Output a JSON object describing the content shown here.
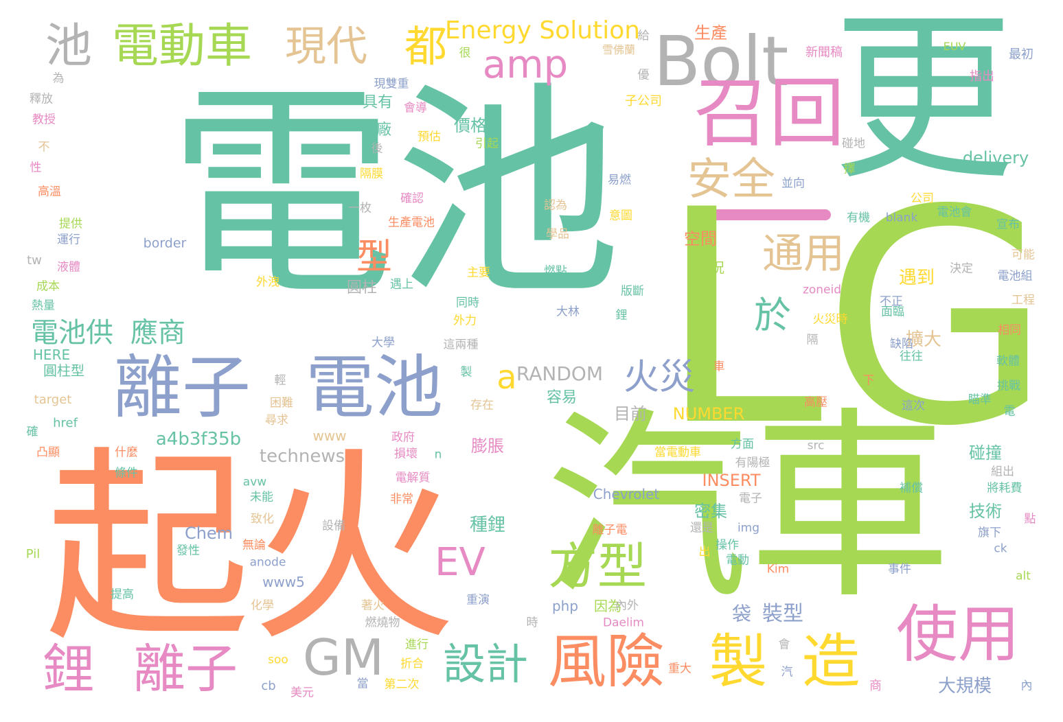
{
  "words": [
    {
      "text": "電池",
      "color": "#66c2a5"
    },
    {
      "text": "更",
      "color": "#66c2a5"
    },
    {
      "text": "LG",
      "color": "#a6d854"
    },
    {
      "text": "起火",
      "color": "#fc8d62"
    },
    {
      "text": "汽車",
      "color": "#a6d854"
    },
    {
      "text": "Bolt",
      "color": "#b3b3b3"
    },
    {
      "text": "召回",
      "color": "#e78ac3"
    },
    {
      "text": "離子",
      "color": "#8da0cb"
    },
    {
      "text": "電池",
      "color": "#8da0cb"
    },
    {
      "text": "電動車",
      "color": "#a6d854"
    },
    {
      "text": "池",
      "color": "#b3b3b3"
    },
    {
      "text": "現代",
      "color": "#e5c494"
    },
    {
      "text": "都",
      "color": "#ffd92f"
    },
    {
      "text": "amp",
      "color": "#e78ac3"
    },
    {
      "text": "Energy Solution",
      "color": "#ffd92f"
    },
    {
      "text": "安全",
      "color": "#e5c494"
    },
    {
      "text": "通用",
      "color": "#e5c494"
    },
    {
      "text": "於",
      "color": "#66c2a5"
    },
    {
      "text": "型",
      "color": "#fc8d62"
    },
    {
      "text": "電池供",
      "color": "#66c2a5"
    },
    {
      "text": "應商",
      "color": "#66c2a5"
    },
    {
      "text": "a",
      "color": "#ffd92f"
    },
    {
      "text": "火災",
      "color": "#8da0cb"
    },
    {
      "text": "方型",
      "color": "#a6d854"
    },
    {
      "text": "EV",
      "color": "#e78ac3"
    },
    {
      "text": "GM",
      "color": "#b3b3b3"
    },
    {
      "text": "鋰",
      "color": "#e78ac3"
    },
    {
      "text": "離子",
      "color": "#e78ac3"
    },
    {
      "text": "設計",
      "color": "#66c2a5"
    },
    {
      "text": "風險",
      "color": "#fc8d62"
    },
    {
      "text": "製",
      "color": "#ffd92f"
    },
    {
      "text": "造",
      "color": "#ffd92f"
    },
    {
      "text": "使用",
      "color": "#e78ac3"
    },
    {
      "text": "RANDOM",
      "color": "#b3b3b3"
    },
    {
      "text": "a4b3f35b",
      "color": "#66c2a5"
    },
    {
      "text": "technews",
      "color": "#b3b3b3"
    },
    {
      "text": "NUMBER",
      "color": "#ffd92f"
    },
    {
      "text": "delivery",
      "color": "#66c2a5"
    },
    {
      "text": "Chevrolet",
      "color": "#8da0cb"
    },
    {
      "text": "Chem",
      "color": "#8da0cb"
    },
    {
      "text": "INSERT",
      "color": "#fc8d62"
    },
    {
      "text": "php",
      "color": "#8da0cb"
    },
    {
      "text": "因為",
      "color": "#a6d854"
    },
    {
      "text": "袋",
      "color": "#8da0cb"
    },
    {
      "text": "裝型",
      "color": "#8da0cb"
    },
    {
      "text": "www5",
      "color": "#8da0cb"
    },
    {
      "text": "border",
      "color": "#8da0cb"
    },
    {
      "text": "HERE",
      "color": "#66c2a5"
    },
    {
      "text": "圓柱型",
      "color": "#66c2a5"
    },
    {
      "text": "target",
      "color": "#e5c494"
    },
    {
      "text": "href",
      "color": "#66c2a5"
    },
    {
      "text": "www",
      "color": "#e5c494"
    },
    {
      "text": "目前",
      "color": "#b3b3b3"
    },
    {
      "text": "容易",
      "color": "#66c2a5"
    },
    {
      "text": "膨脹",
      "color": "#e78ac3"
    },
    {
      "text": "空間",
      "color": "#fc8d62"
    },
    {
      "text": "狀況",
      "color": "#a6d854"
    },
    {
      "text": "遇到",
      "color": "#ffd92f"
    },
    {
      "text": "擴大",
      "color": "#e5c494"
    },
    {
      "text": "技術",
      "color": "#66c2a5"
    },
    {
      "text": "碰撞",
      "color": "#66c2a5"
    },
    {
      "text": "密集",
      "color": "#66c2a5"
    },
    {
      "text": "種鋰",
      "color": "#66c2a5"
    },
    {
      "text": "大規模",
      "color": "#8da0cb"
    },
    {
      "text": "價格",
      "color": "#66c2a5"
    },
    {
      "text": "具有",
      "color": "#66c2a5"
    },
    {
      "text": "韓廠",
      "color": "#66c2a5"
    },
    {
      "text": "圓柱",
      "color": "#b3b3b3"
    },
    {
      "text": "生產",
      "color": "#fc8d62"
    },
    {
      "text": "新聞稿",
      "color": "#e78ac3"
    },
    {
      "text": "EUV",
      "color": "#a6d854"
    },
    {
      "text": "最初",
      "color": "#8da0cb"
    },
    {
      "text": "指出",
      "color": "#e78ac3"
    },
    {
      "text": "子公司",
      "color": "#ffd92f"
    },
    {
      "text": "現雙重",
      "color": "#8da0cb"
    },
    {
      "text": "雪佛蘭",
      "color": "#e5c494"
    },
    {
      "text": "會導",
      "color": "#e78ac3"
    },
    {
      "text": "預估",
      "color": "#ffd92f"
    },
    {
      "text": "引起",
      "color": "#a6d854"
    },
    {
      "text": "blank",
      "color": "#8da0cb"
    },
    {
      "text": "有機",
      "color": "#66c2a5"
    },
    {
      "text": "電池會",
      "color": "#66c2a5"
    },
    {
      "text": "公司",
      "color": "#ffd92f"
    },
    {
      "text": "宣布",
      "color": "#66c2a5"
    },
    {
      "text": "可能",
      "color": "#e5c494"
    },
    {
      "text": "電池組",
      "color": "#8da0cb"
    },
    {
      "text": "工程",
      "color": "#e5c494"
    },
    {
      "text": "相同",
      "color": "#fc8d62"
    },
    {
      "text": "zoneid",
      "color": "#e78ac3"
    },
    {
      "text": "火災時",
      "color": "#ffd92f"
    },
    {
      "text": "軟體",
      "color": "#66c2a5"
    },
    {
      "text": "挑戰",
      "color": "#66c2a5"
    },
    {
      "text": "瞄準",
      "color": "#66c2a5"
    },
    {
      "text": "高壓",
      "color": "#fc8d62"
    },
    {
      "text": "這次",
      "color": "#8da0cb"
    },
    {
      "text": "往往",
      "color": "#66c2a5"
    },
    {
      "text": "缺陷",
      "color": "#8da0cb"
    },
    {
      "text": "大林",
      "color": "#8da0cb"
    },
    {
      "text": "版斷",
      "color": "#66c2a5"
    },
    {
      "text": "燃點",
      "color": "#66c2a5"
    },
    {
      "text": "主要",
      "color": "#ffd92f"
    },
    {
      "text": "同時",
      "color": "#66c2a5"
    },
    {
      "text": "外力",
      "color": "#ffd92f"
    },
    {
      "text": "這兩種",
      "color": "#b3b3b3"
    },
    {
      "text": "大學",
      "color": "#8da0cb"
    },
    {
      "text": "外洩",
      "color": "#ffd92f"
    },
    {
      "text": "學品",
      "color": "#e5c494"
    },
    {
      "text": "認為",
      "color": "#e5c494"
    },
    {
      "text": "易燃",
      "color": "#8da0cb"
    },
    {
      "text": "意圖",
      "color": "#ffd92f"
    },
    {
      "text": "生產電池",
      "color": "#fc8d62"
    },
    {
      "text": "確認",
      "color": "#e78ac3"
    },
    {
      "text": "一枚",
      "color": "#b3b3b3"
    },
    {
      "text": "並向",
      "color": "#8da0cb"
    },
    {
      "text": "擇",
      "color": "#a6d854"
    },
    {
      "text": "碰地",
      "color": "#b3b3b3"
    },
    {
      "text": "很",
      "color": "#a6d854"
    },
    {
      "text": "優",
      "color": "#b3b3b3"
    },
    {
      "text": "給",
      "color": "#b3b3b3"
    },
    {
      "text": "隔膜",
      "color": "#ffd92f"
    },
    {
      "text": "後",
      "color": "#b3b3b3"
    },
    {
      "text": "為",
      "color": "#b3b3b3"
    },
    {
      "text": "釋放",
      "color": "#b3b3b3"
    },
    {
      "text": "教授",
      "color": "#e78ac3"
    },
    {
      "text": "不",
      "color": "#e5c494"
    },
    {
      "text": "性",
      "color": "#e78ac3"
    },
    {
      "text": "高溫",
      "color": "#fc8d62"
    },
    {
      "text": "提供",
      "color": "#a6d854"
    },
    {
      "text": "運行",
      "color": "#8da0cb"
    },
    {
      "text": "tw",
      "color": "#b3b3b3"
    },
    {
      "text": "液體",
      "color": "#e78ac3"
    },
    {
      "text": "成本",
      "color": "#a6d854"
    },
    {
      "text": "熱量",
      "color": "#66c2a5"
    },
    {
      "text": "遇上",
      "color": "#66c2a5"
    },
    {
      "text": "輕",
      "color": "#b3b3b3"
    },
    {
      "text": "困難",
      "color": "#e5c494"
    },
    {
      "text": "尋求",
      "color": "#e5c494"
    },
    {
      "text": "政府",
      "color": "#e78ac3"
    },
    {
      "text": "存在",
      "color": "#e5c494"
    },
    {
      "text": "損壞",
      "color": "#e78ac3"
    },
    {
      "text": "n",
      "color": "#66c2a5"
    },
    {
      "text": "電解質",
      "color": "#e78ac3"
    },
    {
      "text": "非常",
      "color": "#fc8d62"
    },
    {
      "text": "設備",
      "color": "#b3b3b3"
    },
    {
      "text": "致化",
      "color": "#e5c494"
    },
    {
      "text": "avw",
      "color": "#66c2a5"
    },
    {
      "text": "未能",
      "color": "#66c2a5"
    },
    {
      "text": "條件",
      "color": "#66c2a5"
    },
    {
      "text": "什麼",
      "color": "#fc8d62"
    },
    {
      "text": "凸顯",
      "color": "#fc8d62"
    },
    {
      "text": "確",
      "color": "#66c2a5"
    },
    {
      "text": "發性",
      "color": "#66c2a5"
    },
    {
      "text": "Pil",
      "color": "#a6d854"
    },
    {
      "text": "無論",
      "color": "#fc8d62"
    },
    {
      "text": "anode",
      "color": "#8da0cb"
    },
    {
      "text": "提高",
      "color": "#66c2a5"
    },
    {
      "text": "化學",
      "color": "#e5c494"
    },
    {
      "text": "著火",
      "color": "#e5c494"
    },
    {
      "text": "燃燒物",
      "color": "#b3b3b3"
    },
    {
      "text": "重演",
      "color": "#8da0cb"
    },
    {
      "text": "時",
      "color": "#b3b3b3"
    },
    {
      "text": "內外",
      "color": "#b3b3b3"
    },
    {
      "text": "Daelim",
      "color": "#e78ac3"
    },
    {
      "text": "進行",
      "color": "#a6d854"
    },
    {
      "text": "折合",
      "color": "#ffd92f"
    },
    {
      "text": "soo",
      "color": "#ffd92f"
    },
    {
      "text": "cb",
      "color": "#8da0cb"
    },
    {
      "text": "美元",
      "color": "#e78ac3"
    },
    {
      "text": "當",
      "color": "#8da0cb"
    },
    {
      "text": "第二次",
      "color": "#ffd92f"
    },
    {
      "text": "會",
      "color": "#b3b3b3"
    },
    {
      "text": "重大",
      "color": "#fc8d62"
    },
    {
      "text": "汽",
      "color": "#8da0cb"
    },
    {
      "text": "商",
      "color": "#e78ac3"
    },
    {
      "text": "內",
      "color": "#8da0cb"
    },
    {
      "text": "Kim",
      "color": "#fc8d62"
    },
    {
      "text": "事件",
      "color": "#8da0cb"
    },
    {
      "text": "alt",
      "color": "#a6d854"
    },
    {
      "text": "ck",
      "color": "#8da0cb"
    },
    {
      "text": "旗下",
      "color": "#8da0cb"
    },
    {
      "text": "將耗費",
      "color": "#66c2a5"
    },
    {
      "text": "組出",
      "color": "#b3b3b3"
    },
    {
      "text": "補償",
      "color": "#66c2a5"
    },
    {
      "text": "點",
      "color": "#e78ac3"
    },
    {
      "text": "電動",
      "color": "#66c2a5"
    },
    {
      "text": "操作",
      "color": "#66c2a5"
    },
    {
      "text": "出",
      "color": "#ffd92f"
    },
    {
      "text": "還是",
      "color": "#b3b3b3"
    },
    {
      "text": "離子電",
      "color": "#fc8d62"
    },
    {
      "text": "img",
      "color": "#8da0cb"
    },
    {
      "text": "電子",
      "color": "#b3b3b3"
    },
    {
      "text": "有陽極",
      "color": "#b3b3b3"
    },
    {
      "text": "方面",
      "color": "#66c2a5"
    },
    {
      "text": "當電動車",
      "color": "#ffd92f"
    },
    {
      "text": "src",
      "color": "#b3b3b3"
    },
    {
      "text": "電",
      "color": "#66c2a5"
    },
    {
      "text": "下",
      "color": "#fc8d62"
    },
    {
      "text": "車",
      "color": "#fc8d62"
    },
    {
      "text": "製",
      "color": "#66c2a5"
    },
    {
      "text": "隔",
      "color": "#b3b3b3"
    },
    {
      "text": "不正",
      "color": "#8da0cb"
    },
    {
      "text": "面臨",
      "color": "#66c2a5"
    },
    {
      "text": "決定",
      "color": "#b3b3b3"
    },
    {
      "text": "鋰",
      "color": "#66c2a5"
    }
  ]
}
